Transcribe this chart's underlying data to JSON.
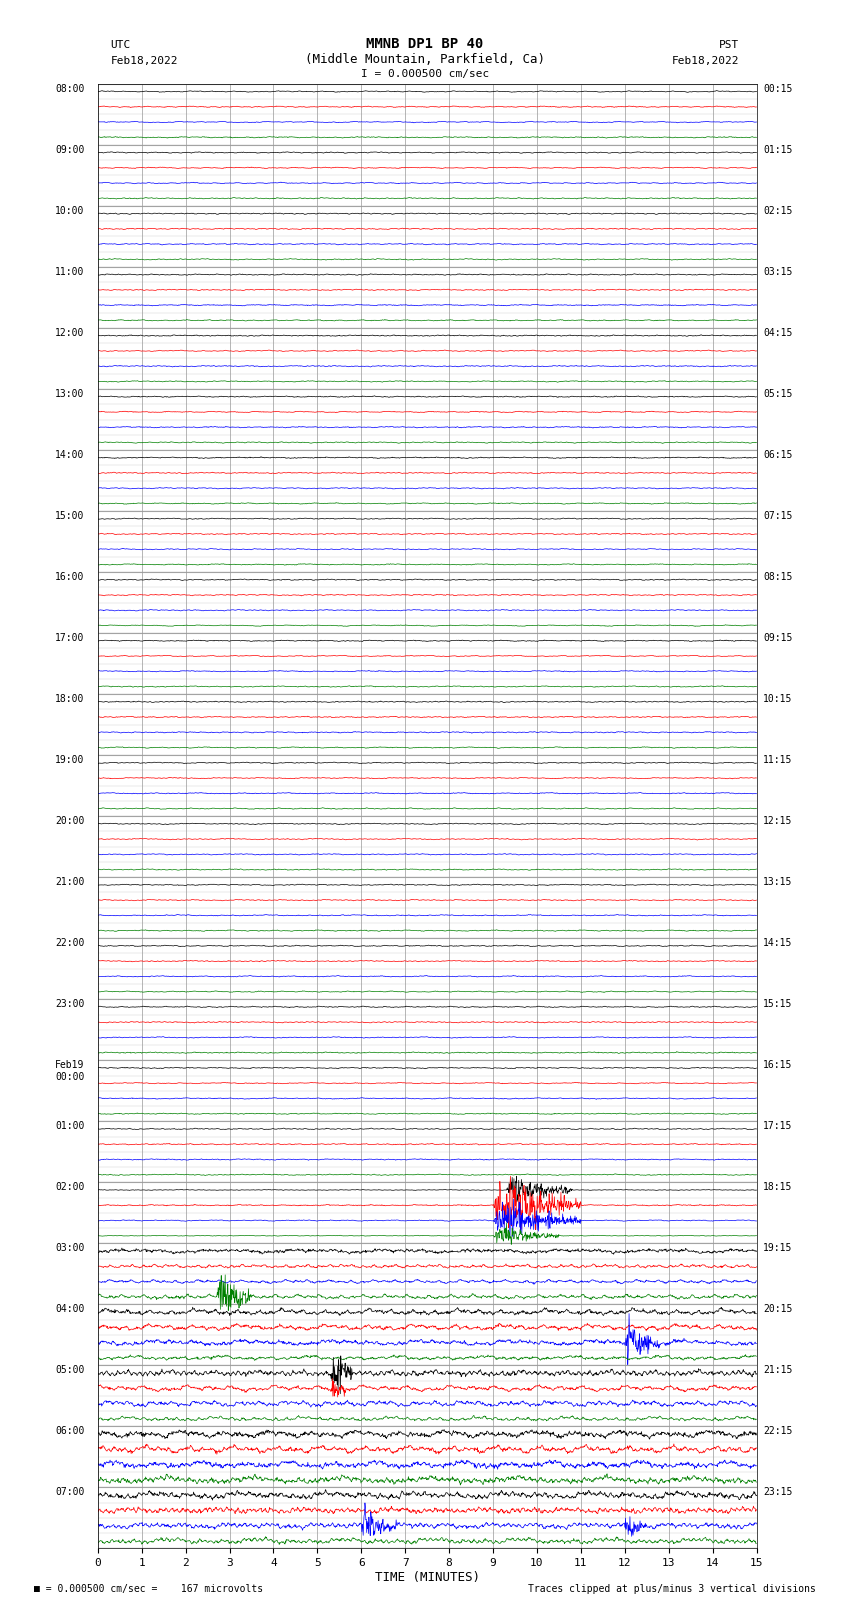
{
  "title_line1": "MMNB DP1 BP 40",
  "title_line2": "(Middle Mountain, Parkfield, Ca)",
  "scale_text": "I = 0.000500 cm/sec",
  "utc_label": "UTC",
  "utc_date": "Feb18,2022",
  "pst_label": "PST",
  "pst_date": "Feb18,2022",
  "xlabel": "TIME (MINUTES)",
  "footer_left": "= 0.000500 cm/sec =    167 microvolts",
  "footer_right": "Traces clipped at plus/minus 3 vertical divisions",
  "x_min": 0,
  "x_max": 15,
  "x_ticks": [
    0,
    1,
    2,
    3,
    4,
    5,
    6,
    7,
    8,
    9,
    10,
    11,
    12,
    13,
    14,
    15
  ],
  "background_color": "#ffffff",
  "grid_color_major": "#999999",
  "grid_color_minor": "#cccccc",
  "trace_color_black": "#000000",
  "trace_color_red": "#ff0000",
  "trace_color_blue": "#0000ff",
  "trace_color_green": "#008000",
  "left_times": [
    "08:00",
    "09:00",
    "10:00",
    "11:00",
    "12:00",
    "13:00",
    "14:00",
    "15:00",
    "16:00",
    "17:00",
    "18:00",
    "19:00",
    "20:00",
    "21:00",
    "22:00",
    "23:00",
    "Feb19\n00:00",
    "01:00",
    "02:00",
    "03:00",
    "04:00",
    "05:00",
    "06:00",
    "07:00"
  ],
  "right_times": [
    "00:15",
    "01:15",
    "02:15",
    "03:15",
    "04:15",
    "05:15",
    "06:15",
    "07:15",
    "08:15",
    "09:15",
    "10:15",
    "11:15",
    "12:15",
    "13:15",
    "14:15",
    "15:15",
    "16:15",
    "17:15",
    "18:15",
    "19:15",
    "20:15",
    "21:15",
    "22:15",
    "23:15"
  ],
  "num_rows": 24,
  "sub_traces": 4,
  "sub_trace_colors": [
    "#000000",
    "#ff0000",
    "#0000ff",
    "#008000"
  ]
}
